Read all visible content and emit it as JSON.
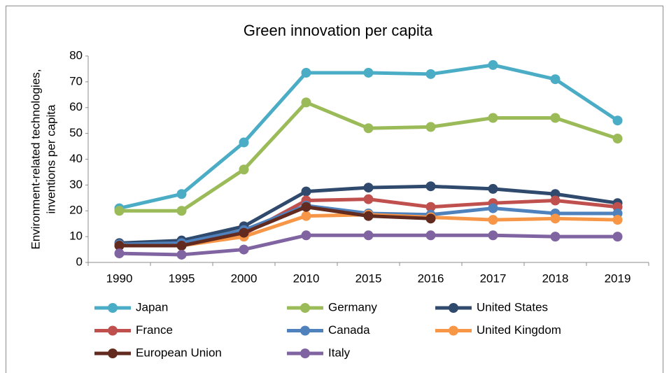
{
  "chart_data": {
    "type": "line",
    "title": "Green innovation per capita",
    "y_label": [
      "Environment-related technologies,",
      "inventions per capita"
    ],
    "categories": [
      "1990",
      "1995",
      "2000",
      "2010",
      "2015",
      "2016",
      "2017",
      "2018",
      "2019"
    ],
    "ylim": [
      0,
      80
    ],
    "yticks": [
      0,
      10,
      20,
      30,
      40,
      50,
      60,
      70,
      80
    ],
    "grid": false,
    "legend": "bottom",
    "series": [
      {
        "name": "Japan",
        "color": "#4bacc6",
        "values": [
          21,
          26.5,
          46.5,
          73.5,
          73.5,
          73,
          76.5,
          71,
          55
        ]
      },
      {
        "name": "Germany",
        "color": "#9bbb59",
        "values": [
          20,
          20,
          36,
          62,
          52,
          52.5,
          56,
          56,
          48
        ]
      },
      {
        "name": "United States",
        "color": "#2f4a6d",
        "values": [
          7.5,
          8.5,
          14,
          27.5,
          29,
          29.5,
          28.5,
          26.5,
          23
        ]
      },
      {
        "name": "France",
        "color": "#c0504d",
        "values": [
          7,
          7,
          11,
          24,
          24.5,
          21.5,
          23,
          24,
          21.5
        ]
      },
      {
        "name": "Canada",
        "color": "#4f81bd",
        "values": [
          7,
          7.5,
          12.5,
          22,
          19,
          18.5,
          21,
          19,
          19
        ]
      },
      {
        "name": "United Kingdom",
        "color": "#f79646",
        "values": [
          6.5,
          6.5,
          10,
          18,
          18.5,
          17.5,
          16.5,
          17,
          16.5
        ]
      },
      {
        "name": "European Union",
        "color": "#632a1f",
        "values": [
          6.5,
          6.5,
          11.5,
          21.5,
          18,
          17,
          null,
          null,
          null
        ]
      },
      {
        "name": "Italy",
        "color": "#8064a2",
        "values": [
          3.5,
          3,
          5,
          10.5,
          10.5,
          10.5,
          10.5,
          10,
          10
        ]
      }
    ]
  }
}
